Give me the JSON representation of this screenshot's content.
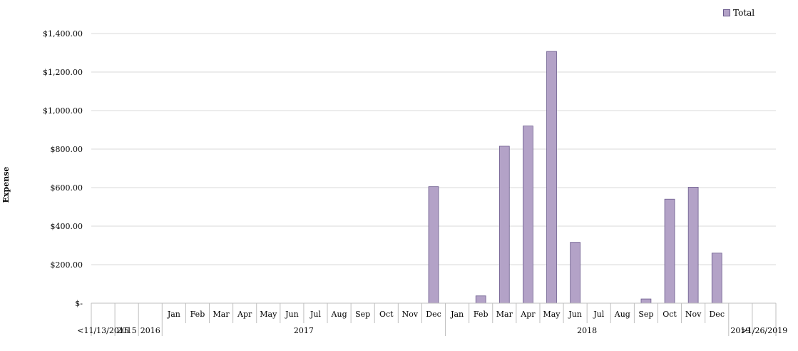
{
  "chart_data": {
    "type": "bar",
    "ylabel": "Expense",
    "ylim": [
      0,
      1400
    ],
    "y_ticks": [
      "$-",
      "$200.00",
      "$400.00",
      "$600.00",
      "$800.00",
      "$1,000.00",
      "$1,200.00",
      "$1,400.00"
    ],
    "y_tick_values": [
      0,
      200,
      400,
      600,
      800,
      1000,
      1200,
      1400
    ],
    "grid": true,
    "legend_position": "top-right",
    "bar_color": "#b3a2c7",
    "bar_edge_color": "#6a5a8c",
    "categories": [
      "",
      "",
      "",
      "Jan",
      "Feb",
      "Mar",
      "Apr",
      "May",
      "Jun",
      "Jul",
      "Aug",
      "Sep",
      "Oct",
      "Nov",
      "Dec",
      "Jan",
      "Feb",
      "Mar",
      "Apr",
      "May",
      "Jun",
      "Jul",
      "Aug",
      "Sep",
      "Oct",
      "Nov",
      "Dec",
      "",
      ""
    ],
    "groups": [
      {
        "label": "<11/13/2015",
        "start": 0,
        "span": 1
      },
      {
        "label": "2015",
        "start": 1,
        "span": 1
      },
      {
        "label": "2016",
        "start": 2,
        "span": 1
      },
      {
        "label": "2017",
        "start": 3,
        "span": 12
      },
      {
        "label": "2018",
        "start": 15,
        "span": 12
      },
      {
        "label": "2019",
        "start": 27,
        "span": 1
      },
      {
        "label": ">1/26/2019",
        "start": 28,
        "span": 1
      }
    ],
    "series": [
      {
        "name": "Total",
        "values": [
          0,
          0,
          0,
          0,
          0,
          0,
          0,
          0,
          0,
          0,
          0,
          0,
          0,
          0,
          605,
          0,
          38,
          815,
          920,
          1307,
          316,
          0,
          0,
          22,
          540,
          602,
          260,
          0,
          0
        ]
      }
    ]
  }
}
